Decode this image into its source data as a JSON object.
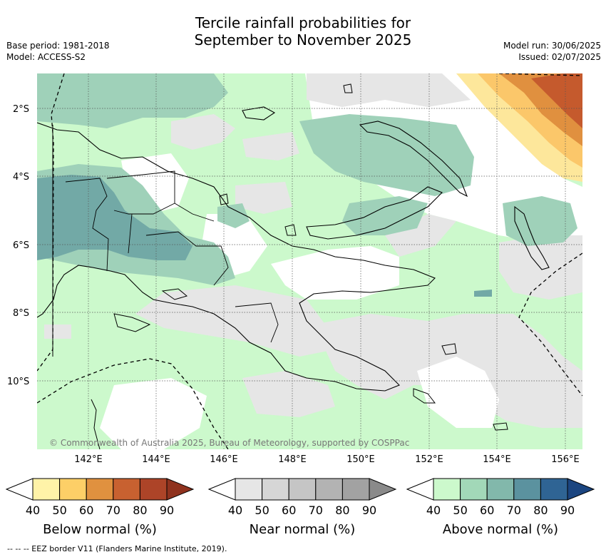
{
  "header": {
    "title_line1": "Tercile rainfall probabilities for",
    "title_line2": "September to November 2025",
    "base_period": "Base period: 1981-2018",
    "model": "Model: ACCESS-S2",
    "model_run": "Model run: 30/06/2025",
    "issued": "Issued: 02/07/2025"
  },
  "map": {
    "lat_labels": [
      "2°S",
      "4°S",
      "6°S",
      "8°S",
      "10°S"
    ],
    "lon_labels": [
      "142°E",
      "144°E",
      "146°E",
      "148°E",
      "150°E",
      "152°E",
      "154°E",
      "156°E"
    ],
    "copyright": "© Commonwealth of Australia 2025, Bureau of Meteorology, supported by COSPPac",
    "colors": {
      "ocean_white": "#ffffff",
      "near_normal_light": "#e6e6e6",
      "above_50": "#ccf9cc",
      "above_60": "#9fd1b9",
      "above_70": "#72a9a6",
      "below_50": "#fde79b",
      "below_60": "#fbc76a",
      "below_70": "#e0903f",
      "below_80": "#c55a2d"
    }
  },
  "colorbars": [
    {
      "title": "Below normal (%)",
      "ticks": [
        "40",
        "50",
        "60",
        "70",
        "80",
        "90"
      ],
      "colors": [
        "#fff3a8",
        "#fdcf67",
        "#e0913f",
        "#c86130",
        "#ad4428",
        "#8f321e"
      ]
    },
    {
      "title": "Near normal (%)",
      "ticks": [
        "40",
        "50",
        "60",
        "70",
        "80",
        "90"
      ],
      "colors": [
        "#e6e6e6",
        "#d6d6d6",
        "#c5c5c5",
        "#b3b3b3",
        "#a2a2a2",
        "#8a8a8a"
      ]
    },
    {
      "title": "Above normal (%)",
      "ticks": [
        "40",
        "50",
        "60",
        "70",
        "80",
        "90"
      ],
      "colors": [
        "#ccf9cc",
        "#a2d8b8",
        "#82b8ab",
        "#5b929f",
        "#2f6494",
        "#1b4580"
      ]
    }
  ],
  "footer": {
    "legend": "--  --  -- EEZ border V11 (Flanders Marine Institute, 2019)."
  }
}
